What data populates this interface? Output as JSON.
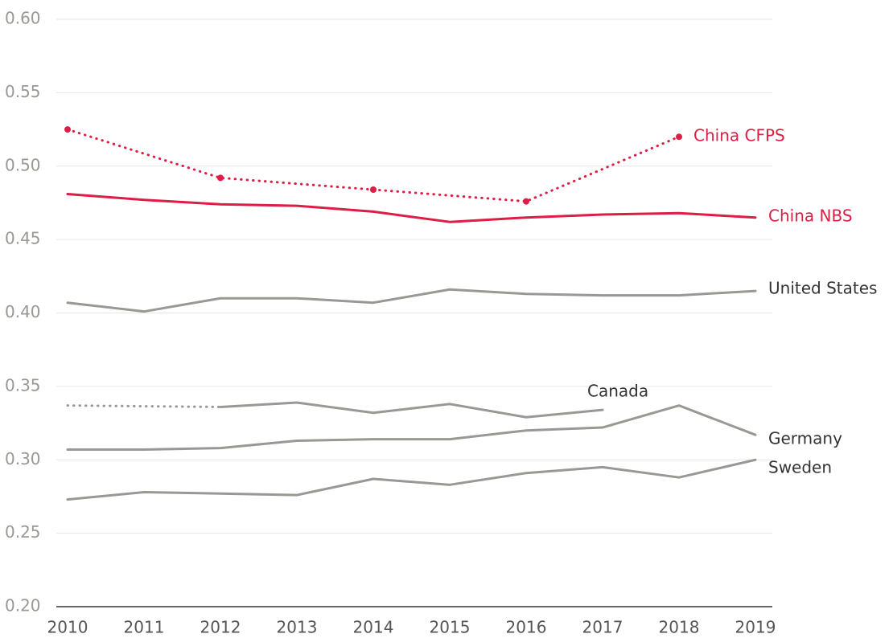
{
  "chart_data": {
    "type": "line",
    "xlim": [
      2010,
      2019
    ],
    "xticks": [
      2010,
      2011,
      2012,
      2013,
      2014,
      2015,
      2016,
      2017,
      2018,
      2019
    ],
    "ylim": [
      0.2,
      0.6
    ],
    "yticks": [
      {
        "value": 0.2,
        "label": "0.20"
      },
      0.25,
      {
        "value": 0.3,
        "label": "0.30"
      },
      0.35,
      {
        "value": 0.4,
        "label": "0.40"
      },
      0.45,
      {
        "value": 0.5,
        "label": "0.50"
      },
      0.55,
      {
        "value": 0.6,
        "label": "0.60"
      }
    ],
    "grid": true,
    "series": [
      {
        "name": "China CFPS",
        "color": "#dc1e46",
        "label_color": "#dc1e46",
        "style": "dotted",
        "markers": true,
        "x": [
          2010,
          2012,
          2014,
          2016,
          2018
        ],
        "values": [
          0.525,
          0.492,
          0.484,
          0.476,
          0.52
        ]
      },
      {
        "name": "China NBS",
        "color": "#dc1e46",
        "label_color": "#dc1e46",
        "style": "solid",
        "x": [
          2010,
          2011,
          2012,
          2013,
          2014,
          2015,
          2016,
          2017,
          2018,
          2019
        ],
        "values": [
          0.481,
          0.477,
          0.474,
          0.473,
          0.469,
          0.462,
          0.465,
          0.467,
          0.468,
          0.465
        ]
      },
      {
        "name": "United States",
        "color": "#9a9893",
        "label_color": "#333333",
        "style": "solid",
        "x": [
          2010,
          2011,
          2012,
          2013,
          2014,
          2015,
          2016,
          2017,
          2018,
          2019
        ],
        "values": [
          0.407,
          0.401,
          0.41,
          0.41,
          0.407,
          0.416,
          0.413,
          0.412,
          0.412,
          0.415
        ]
      },
      {
        "name": "Canada",
        "color": "#9a9893",
        "label_color": "#333333",
        "style": "solid",
        "dotted_until": 2012,
        "x": [
          2010,
          2012,
          2013,
          2014,
          2015,
          2016,
          2017
        ],
        "values": [
          0.337,
          0.336,
          0.339,
          0.332,
          0.338,
          0.329,
          0.334
        ]
      },
      {
        "name": "Germany",
        "color": "#9a9893",
        "label_color": "#333333",
        "style": "solid",
        "x": [
          2010,
          2011,
          2012,
          2013,
          2014,
          2015,
          2016,
          2017,
          2018,
          2019
        ],
        "values": [
          0.307,
          0.307,
          0.308,
          0.313,
          0.314,
          0.314,
          0.32,
          0.322,
          0.337,
          0.317
        ]
      },
      {
        "name": "Sweden",
        "color": "#9a9893",
        "label_color": "#333333",
        "style": "solid",
        "x": [
          2010,
          2011,
          2012,
          2013,
          2014,
          2015,
          2016,
          2017,
          2018,
          2019
        ],
        "values": [
          0.273,
          0.278,
          0.277,
          0.276,
          0.287,
          0.283,
          0.291,
          0.295,
          0.288,
          0.3
        ]
      }
    ]
  }
}
